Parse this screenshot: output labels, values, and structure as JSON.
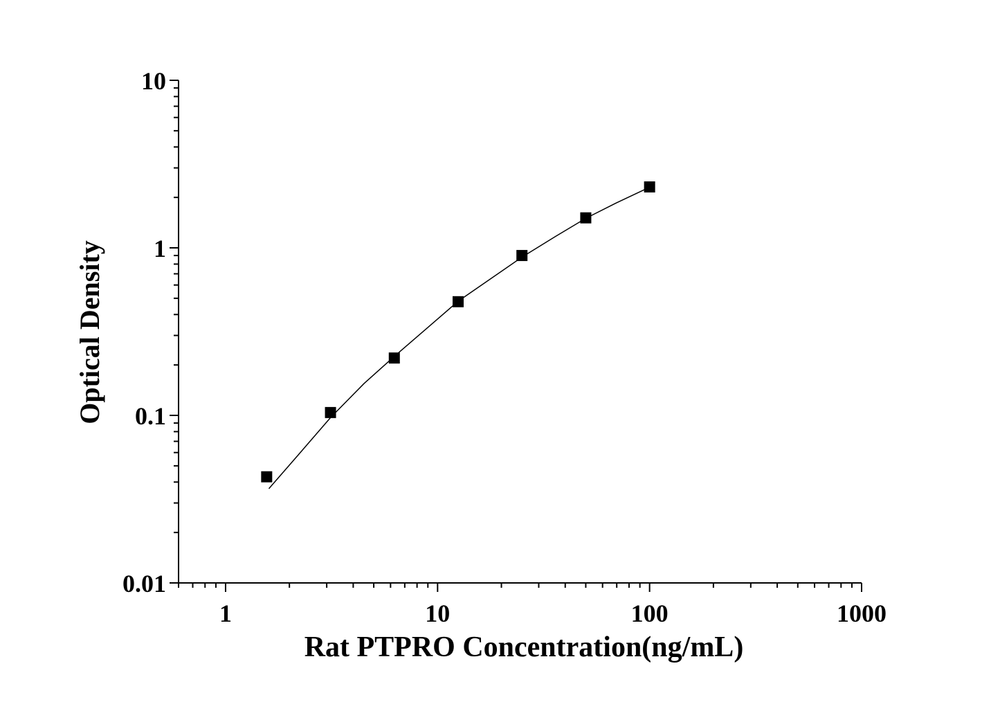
{
  "chart_data": {
    "type": "scatter",
    "x_label": "Rat PTPRO Concentration(ng/mL)",
    "y_label": "Optical Density",
    "x_scale": "log",
    "y_scale": "log",
    "xlim": [
      0.6,
      1000
    ],
    "xticks": [
      1,
      10,
      100,
      1000
    ],
    "ylim": [
      0.01,
      10
    ],
    "yticks": [
      0.01,
      0.1,
      1,
      10
    ],
    "series": [
      {
        "kind": "markers",
        "color": "#000000",
        "x": [
          1.5625,
          3.125,
          6.25,
          12.5,
          25,
          50,
          100
        ],
        "values": [
          0.043,
          0.104,
          0.22,
          0.477,
          0.9,
          1.51,
          2.31
        ]
      },
      {
        "kind": "line",
        "color": "#000000",
        "x": [
          1.6,
          2.2,
          3.125,
          4.5,
          6.25,
          9,
          12.5,
          18,
          25,
          36,
          50,
          70,
          100
        ],
        "values": [
          0.0365,
          0.058,
          0.097,
          0.155,
          0.225,
          0.335,
          0.48,
          0.66,
          0.88,
          1.17,
          1.5,
          1.86,
          2.3
        ]
      }
    ]
  }
}
